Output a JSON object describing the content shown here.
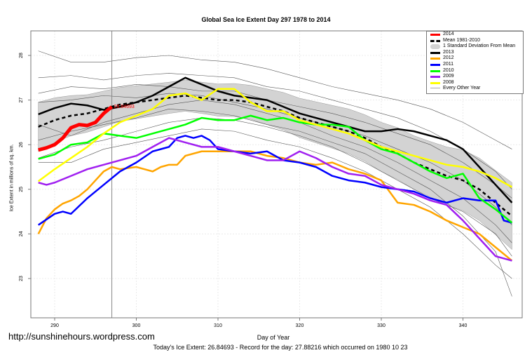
{
  "chart_data": {
    "type": "line",
    "title": "Global Sea Ice Extent Day 297 1978 to 2014",
    "xlabel": "Day of Year",
    "ylabel": "Ice Extent in millions of sq. km.",
    "xlim": [
      287,
      347
    ],
    "ylim": [
      22,
      28.5
    ],
    "xticks": [
      290,
      300,
      310,
      320,
      330,
      340
    ],
    "yticks": [
      23,
      24,
      25,
      26,
      27,
      28
    ],
    "grid": true,
    "legend_position": "top-right",
    "current_day": 297,
    "endpoint_label": "26.84693",
    "series": [
      {
        "name": "2014",
        "color": "#ff0000",
        "width": 5,
        "x": [
          288,
          289,
          290,
          291,
          292,
          293,
          294,
          295,
          296,
          297
        ],
        "values": [
          25.88,
          25.93,
          26.0,
          26.15,
          26.38,
          26.45,
          26.43,
          26.5,
          26.7,
          26.85
        ]
      },
      {
        "name": "2013",
        "color": "#000000",
        "width": 2.5,
        "x": [
          288,
          290,
          292,
          294,
          296,
          298,
          300,
          302,
          304,
          306,
          308,
          310,
          312,
          314,
          316,
          318,
          320,
          322,
          324,
          326,
          328,
          330,
          332,
          334,
          336,
          338,
          340,
          342,
          344,
          346
        ],
        "values": [
          26.68,
          26.82,
          26.92,
          26.88,
          26.78,
          26.85,
          26.95,
          27.1,
          27.3,
          27.5,
          27.35,
          27.2,
          27.1,
          27.05,
          27.0,
          26.85,
          26.7,
          26.6,
          26.5,
          26.4,
          26.3,
          26.3,
          26.35,
          26.3,
          26.2,
          26.1,
          25.9,
          25.5,
          25.1,
          24.7
        ]
      },
      {
        "name": "2012",
        "color": "#ffa500",
        "width": 2.5,
        "x": [
          288,
          289,
          290,
          291,
          292,
          293,
          294,
          295,
          296,
          297,
          298,
          300,
          301,
          302,
          303,
          304,
          305,
          306,
          308,
          310,
          312,
          314,
          316,
          318,
          320,
          322,
          324,
          326,
          328,
          330,
          332,
          334,
          336,
          338,
          340,
          342,
          344,
          346
        ],
        "values": [
          24.0,
          24.35,
          24.55,
          24.68,
          24.75,
          24.85,
          25.0,
          25.2,
          25.4,
          25.5,
          25.45,
          25.5,
          25.45,
          25.4,
          25.5,
          25.55,
          25.55,
          25.75,
          25.85,
          25.85,
          25.85,
          25.85,
          25.75,
          25.7,
          25.6,
          25.55,
          25.6,
          25.45,
          25.35,
          25.2,
          24.7,
          24.65,
          24.5,
          24.3,
          24.15,
          24.0,
          23.7,
          23.4
        ]
      },
      {
        "name": "2011",
        "color": "#0000ff",
        "width": 2.5,
        "x": [
          288,
          290,
          291,
          292,
          294,
          296,
          298,
          300,
          302,
          304,
          305,
          306,
          307,
          308,
          309,
          310,
          312,
          314,
          316,
          318,
          320,
          322,
          324,
          326,
          328,
          330,
          332,
          334,
          336,
          338,
          340,
          342,
          344,
          345,
          346
        ],
        "values": [
          24.2,
          24.45,
          24.5,
          24.45,
          24.8,
          25.1,
          25.4,
          25.6,
          25.85,
          25.95,
          26.15,
          26.2,
          26.15,
          26.2,
          26.1,
          25.9,
          25.85,
          25.8,
          25.85,
          25.65,
          25.6,
          25.5,
          25.3,
          25.2,
          25.15,
          25.05,
          25.0,
          24.95,
          24.8,
          24.7,
          24.8,
          24.75,
          24.75,
          24.3,
          24.25
        ]
      },
      {
        "name": "2010",
        "color": "#00ff00",
        "width": 2.5,
        "x": [
          288,
          290,
          292,
          294,
          296,
          298,
          300,
          302,
          304,
          306,
          308,
          310,
          312,
          314,
          316,
          318,
          320,
          322,
          324,
          326,
          328,
          330,
          332,
          334,
          336,
          338,
          340,
          342,
          344,
          346
        ],
        "values": [
          25.68,
          25.78,
          26.0,
          26.05,
          26.25,
          26.2,
          26.15,
          26.25,
          26.35,
          26.45,
          26.6,
          26.55,
          26.55,
          26.65,
          26.55,
          26.6,
          26.5,
          26.45,
          26.45,
          26.4,
          26.1,
          25.9,
          25.8,
          25.6,
          25.4,
          25.25,
          25.35,
          24.8,
          24.55,
          24.25
        ]
      },
      {
        "name": "2009",
        "color": "#a020f0",
        "width": 2.5,
        "x": [
          288,
          289,
          290,
          292,
          294,
          296,
          298,
          300,
          302,
          304,
          306,
          308,
          310,
          312,
          314,
          316,
          318,
          320,
          322,
          324,
          326,
          328,
          330,
          332,
          334,
          336,
          338,
          340,
          342,
          344,
          346
        ],
        "values": [
          25.15,
          25.1,
          25.15,
          25.3,
          25.45,
          25.55,
          25.65,
          25.75,
          25.95,
          26.15,
          26.05,
          25.95,
          25.95,
          25.85,
          25.75,
          25.65,
          25.65,
          25.85,
          25.7,
          25.5,
          25.35,
          25.3,
          25.1,
          25.0,
          24.9,
          24.75,
          24.65,
          24.3,
          23.9,
          23.5,
          23.4
        ]
      },
      {
        "name": "2008",
        "color": "#ffff00",
        "width": 2.5,
        "x": [
          288,
          290,
          292,
          294,
          296,
          298,
          300,
          302,
          304,
          306,
          308,
          310,
          312,
          314,
          316,
          318,
          320,
          322,
          324,
          326,
          328,
          330,
          332,
          334,
          336,
          338,
          340,
          342,
          344,
          346
        ],
        "values": [
          25.18,
          25.45,
          25.7,
          25.95,
          26.25,
          26.5,
          26.65,
          26.8,
          27.1,
          27.15,
          27.0,
          27.25,
          27.25,
          26.95,
          26.75,
          26.75,
          26.55,
          26.45,
          26.35,
          26.25,
          26.1,
          25.95,
          25.85,
          25.75,
          25.65,
          25.55,
          25.5,
          25.4,
          25.25,
          25.05
        ]
      }
    ],
    "mean": {
      "name": "Mean 1981-2010",
      "x": [
        288,
        290,
        292,
        294,
        296,
        298,
        300,
        302,
        304,
        306,
        308,
        310,
        312,
        314,
        316,
        318,
        320,
        322,
        324,
        326,
        328,
        330,
        332,
        334,
        336,
        338,
        340,
        342,
        344,
        346
      ],
      "values": [
        26.4,
        26.55,
        26.65,
        26.7,
        26.8,
        26.9,
        26.95,
        27.0,
        27.05,
        27.1,
        27.05,
        27.0,
        27.0,
        26.95,
        26.85,
        26.75,
        26.6,
        26.5,
        26.4,
        26.3,
        26.15,
        25.95,
        25.8,
        25.6,
        25.45,
        25.3,
        25.2,
        25.0,
        24.7,
        24.4
      ],
      "sd": [
        0.55,
        0.5,
        0.45,
        0.42,
        0.4,
        0.38,
        0.37,
        0.36,
        0.35,
        0.35,
        0.35,
        0.36,
        0.37,
        0.38,
        0.4,
        0.42,
        0.44,
        0.46,
        0.48,
        0.5,
        0.52,
        0.55,
        0.58,
        0.6,
        0.62,
        0.65,
        0.68,
        0.7,
        0.72,
        0.75
      ],
      "sd_name": "1 Standard Deviation From Mean"
    },
    "other_years": {
      "name": "Every Other Year",
      "x": [
        288,
        292,
        296,
        300,
        304,
        308,
        312,
        316,
        320,
        324,
        328,
        332,
        336,
        340,
        344,
        346
      ],
      "lines": [
        [
          28.1,
          27.85,
          27.85,
          27.95,
          28.0,
          27.9,
          27.85,
          27.7,
          27.5,
          27.3,
          27.15,
          27.0,
          26.8,
          26.5,
          26.1,
          25.9
        ],
        [
          27.5,
          27.55,
          27.45,
          27.55,
          27.6,
          27.55,
          27.5,
          27.3,
          27.2,
          27.0,
          26.8,
          26.6,
          26.3,
          25.9,
          25.4,
          25.0
        ],
        [
          27.15,
          27.3,
          27.25,
          27.35,
          27.3,
          27.2,
          27.2,
          27.0,
          26.85,
          26.7,
          26.5,
          26.25,
          26.0,
          25.6,
          25.1,
          24.8
        ],
        [
          26.95,
          27.0,
          27.1,
          27.05,
          27.15,
          27.1,
          26.95,
          26.8,
          26.6,
          26.4,
          26.2,
          25.9,
          25.6,
          25.2,
          24.6,
          24.2
        ],
        [
          26.45,
          26.2,
          26.5,
          26.7,
          26.9,
          27.0,
          26.9,
          26.7,
          26.5,
          26.2,
          25.95,
          25.6,
          25.2,
          24.8,
          24.2,
          23.8
        ],
        [
          26.1,
          26.3,
          26.45,
          26.6,
          26.8,
          26.75,
          26.65,
          26.45,
          26.3,
          26.05,
          25.8,
          25.4,
          25.0,
          24.4,
          23.6,
          22.6
        ],
        [
          25.7,
          25.95,
          26.1,
          26.3,
          26.5,
          26.6,
          26.55,
          26.4,
          26.2,
          25.95,
          25.6,
          25.2,
          24.8,
          24.5,
          24.0,
          23.5
        ],
        [
          25.6,
          25.6,
          25.9,
          26.05,
          26.2,
          26.35,
          26.3,
          26.1,
          25.95,
          25.7,
          25.4,
          25.0,
          24.6,
          24.0,
          23.3,
          23.0
        ]
      ]
    }
  },
  "legend": {
    "items": [
      {
        "label": "2014",
        "color": "#ff0000"
      },
      {
        "label": "Mean 1981-2010",
        "color": "#000000"
      },
      {
        "label": "1 Standard Deviation From Mean",
        "color": "#d3d3d3"
      },
      {
        "label": "2013",
        "color": "#000000"
      },
      {
        "label": "2012",
        "color": "#ffa500"
      },
      {
        "label": "2011",
        "color": "#0000ff"
      },
      {
        "label": "2010",
        "color": "#00ff00"
      },
      {
        "label": "2009",
        "color": "#a020f0"
      },
      {
        "label": "2008",
        "color": "#ffff00"
      },
      {
        "label": "Every Other Year",
        "color": "#aaaaaa"
      }
    ]
  },
  "footer": "Today's Ice Extent: 26.84693  - Record for the day: 27.88216 which occurred on 1980 10 23",
  "watermark": "http://sunshinehours.wordpress.com"
}
